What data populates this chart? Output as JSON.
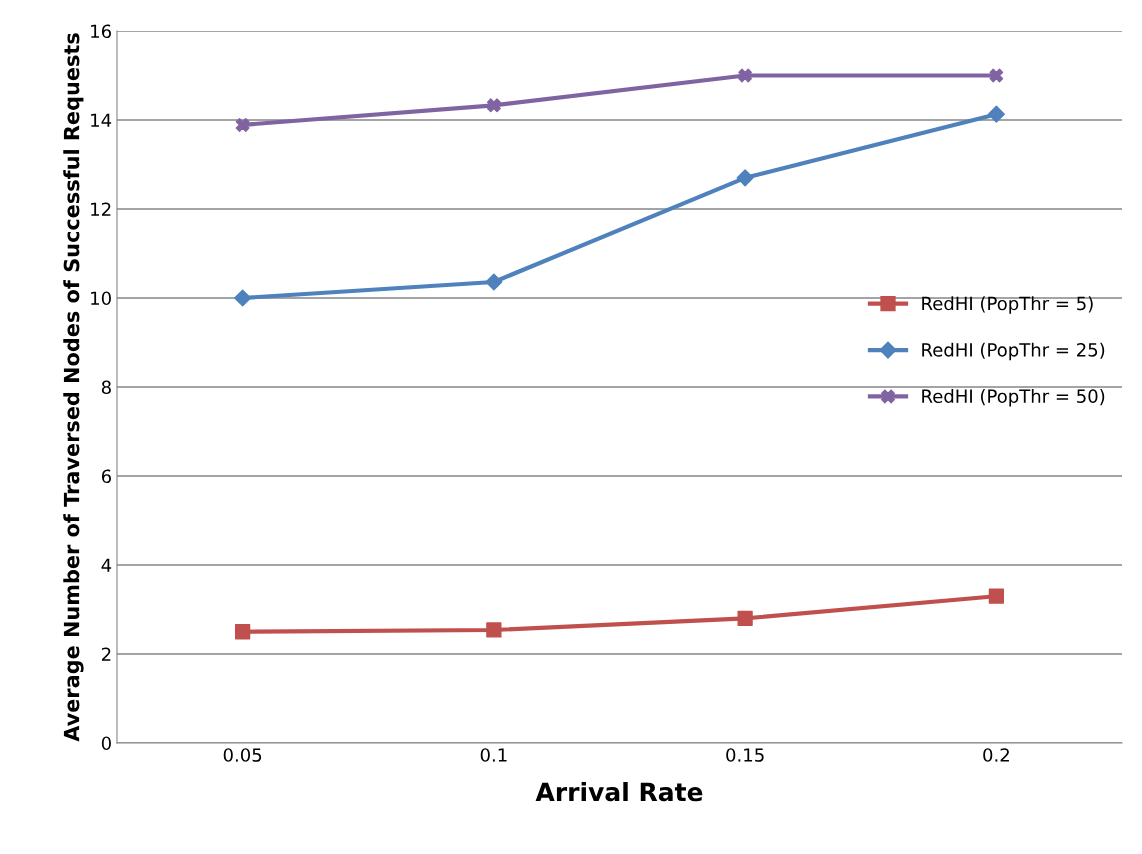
{
  "chart_data": {
    "type": "line",
    "xlabel": "Arrival Rate",
    "ylabel": "Average Number of Traversed Nodes of Successful Requests",
    "categories": [
      "0.05",
      "0.1",
      "0.15",
      "0.2"
    ],
    "series": [
      {
        "name": "RedHI (PopThr = 5)",
        "color": "#c0504d",
        "marker": "square",
        "values": [
          2.5,
          2.54,
          2.8,
          3.3
        ]
      },
      {
        "name": "RedHI (PopThr = 25)",
        "color": "#4f81bd",
        "marker": "diamond",
        "values": [
          10.0,
          10.36,
          12.7,
          14.13
        ]
      },
      {
        "name": "RedHI (PopThr = 50)",
        "color": "#8064a2",
        "marker": "cross",
        "values": [
          13.89,
          14.33,
          15.0,
          15.0
        ]
      }
    ],
    "ylim": [
      0,
      16
    ],
    "yticks": [
      0,
      2,
      4,
      6,
      8,
      10,
      12,
      14,
      16
    ],
    "grid": "y",
    "legend": "right",
    "line_style": "solid"
  }
}
